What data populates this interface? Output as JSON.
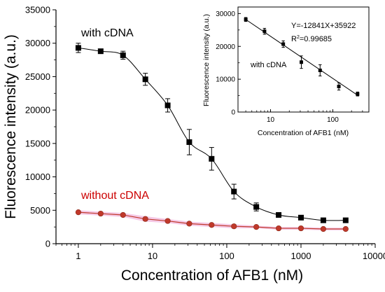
{
  "chart_data": [
    {
      "type": "scatter",
      "xlabel": "Concentration of AFB1 (nM)",
      "ylabel": "Fluorescence intensity (a.u.)",
      "x_scale": "log",
      "xlim": [
        0.5,
        10000
      ],
      "ylim": [
        0,
        35000
      ],
      "x_ticks": [
        1,
        10,
        100,
        1000,
        10000
      ],
      "x_tick_labels": [
        "1",
        "10",
        "100",
        "1000",
        "10000"
      ],
      "y_ticks": [
        0,
        5000,
        10000,
        15000,
        20000,
        25000,
        30000,
        35000
      ],
      "y_tick_labels": [
        "0",
        "5000",
        "10000",
        "15000",
        "20000",
        "25000",
        "30000",
        "35000"
      ],
      "grid": false,
      "series": [
        {
          "name": "with cDNA",
          "label_color": "#000000",
          "marker": "square",
          "color": "#000000",
          "x": [
            1,
            2,
            4,
            8,
            16,
            31.25,
            62.5,
            125,
            250,
            500,
            1000,
            2000,
            4000
          ],
          "y": [
            29300,
            28800,
            28200,
            24600,
            20700,
            15200,
            12700,
            7800,
            5500,
            4300,
            3900,
            3500,
            3500
          ],
          "err": [
            700,
            300,
            600,
            900,
            1000,
            1900,
            1700,
            1100,
            600,
            300,
            250,
            200,
            200
          ],
          "fit": "sigmoid"
        },
        {
          "name": "without cDNA",
          "label_color": "#cc0000",
          "marker": "circle",
          "color": "#c0392b",
          "band_color": "#f2b8df",
          "x": [
            1,
            2,
            4,
            8,
            16,
            31.25,
            62.5,
            125,
            250,
            500,
            1000,
            2000,
            4000
          ],
          "y": [
            4700,
            4500,
            4300,
            3700,
            3400,
            3000,
            2800,
            2600,
            2500,
            2300,
            2300,
            2200,
            2200
          ],
          "err": [
            300,
            300,
            300,
            400,
            300,
            300,
            300,
            300,
            200,
            200,
            200,
            200,
            200
          ]
        }
      ]
    },
    {
      "type": "scatter",
      "xlabel": "Concentration of AFB1 (nM)",
      "ylabel": "Fluorescence intensity (a.u.)",
      "x_scale": "log",
      "xlim": [
        3,
        380
      ],
      "ylim": [
        0,
        32000
      ],
      "x_ticks": [
        10,
        100
      ],
      "x_tick_labels": [
        "10",
        "100"
      ],
      "y_ticks": [
        0,
        10000,
        20000,
        30000
      ],
      "y_tick_labels": [
        "0",
        "10000",
        "20000",
        "30000"
      ],
      "grid": false,
      "equation": "Y=-12841X+35922",
      "r2_prefix": "R",
      "r2_sup": "2",
      "r2_value": "=0.99685",
      "series_label": "with cDNA",
      "fit": {
        "slope": -12841,
        "intercept": 35922
      },
      "series": [
        {
          "name": "with cDNA",
          "marker": "square",
          "color": "#000000",
          "x": [
            4,
            8,
            16,
            31.25,
            62.5,
            125,
            250
          ],
          "y": [
            28200,
            24600,
            20700,
            15200,
            12700,
            7800,
            5500
          ],
          "err": [
            600,
            900,
            1000,
            1900,
            1700,
            1100,
            600
          ]
        }
      ]
    }
  ]
}
